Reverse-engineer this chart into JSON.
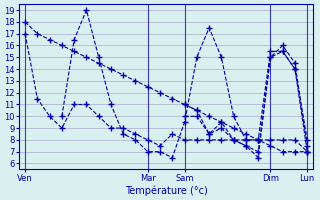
{
  "xlabel": "Température (°c)",
  "background_color": "#d9f0f0",
  "grid_color": "#aaaacc",
  "line_color": "#0000aa",
  "yticks": [
    6,
    7,
    8,
    9,
    10,
    11,
    12,
    13,
    14,
    15,
    16,
    17,
    18,
    19
  ],
  "ylim": [
    5.5,
    19.5
  ],
  "day_labels": [
    "Ven",
    "Mar",
    "Sam",
    "Dim",
    "Lun"
  ],
  "day_x": [
    0,
    10,
    13,
    20,
    23
  ],
  "num_points": 24,
  "x_vals": [
    0,
    1,
    2,
    3,
    4,
    5,
    6,
    7,
    8,
    9,
    10,
    11,
    12,
    13,
    14,
    15,
    16,
    17,
    18,
    19,
    20,
    21,
    22,
    23
  ],
  "xlim": [
    -0.5,
    23.5
  ],
  "lines": [
    [
      18,
      17,
      16.5,
      16,
      15.5,
      15,
      14.5,
      14,
      13.5,
      13,
      12.5,
      12,
      11.5,
      11,
      10.5,
      10,
      9.5,
      9,
      8.5,
      8,
      7.5,
      7,
      7,
      7
    ],
    [
      17,
      11.5,
      10,
      9,
      11,
      11,
      10,
      9,
      9,
      8.5,
      8,
      7.5,
      8.5,
      8,
      8,
      8,
      8,
      8,
      8,
      8,
      8,
      8,
      8,
      7
    ],
    [
      null,
      null,
      null,
      10,
      16.5,
      19,
      15,
      11,
      8.5,
      8,
      7,
      7,
      6.5,
      9.5,
      15,
      17.5,
      15,
      10,
      8,
      8,
      15.5,
      15.5,
      14,
      8
    ],
    [
      null,
      null,
      null,
      null,
      null,
      null,
      null,
      null,
      null,
      null,
      null,
      null,
      null,
      11,
      10.5,
      8.5,
      9.5,
      8,
      7.5,
      6.5,
      15,
      15.5,
      14,
      7
    ],
    [
      null,
      null,
      null,
      null,
      null,
      null,
      null,
      null,
      null,
      null,
      null,
      null,
      null,
      10,
      10,
      8.5,
      9,
      8,
      7.5,
      7,
      15,
      16,
      14.5,
      7.5
    ]
  ]
}
